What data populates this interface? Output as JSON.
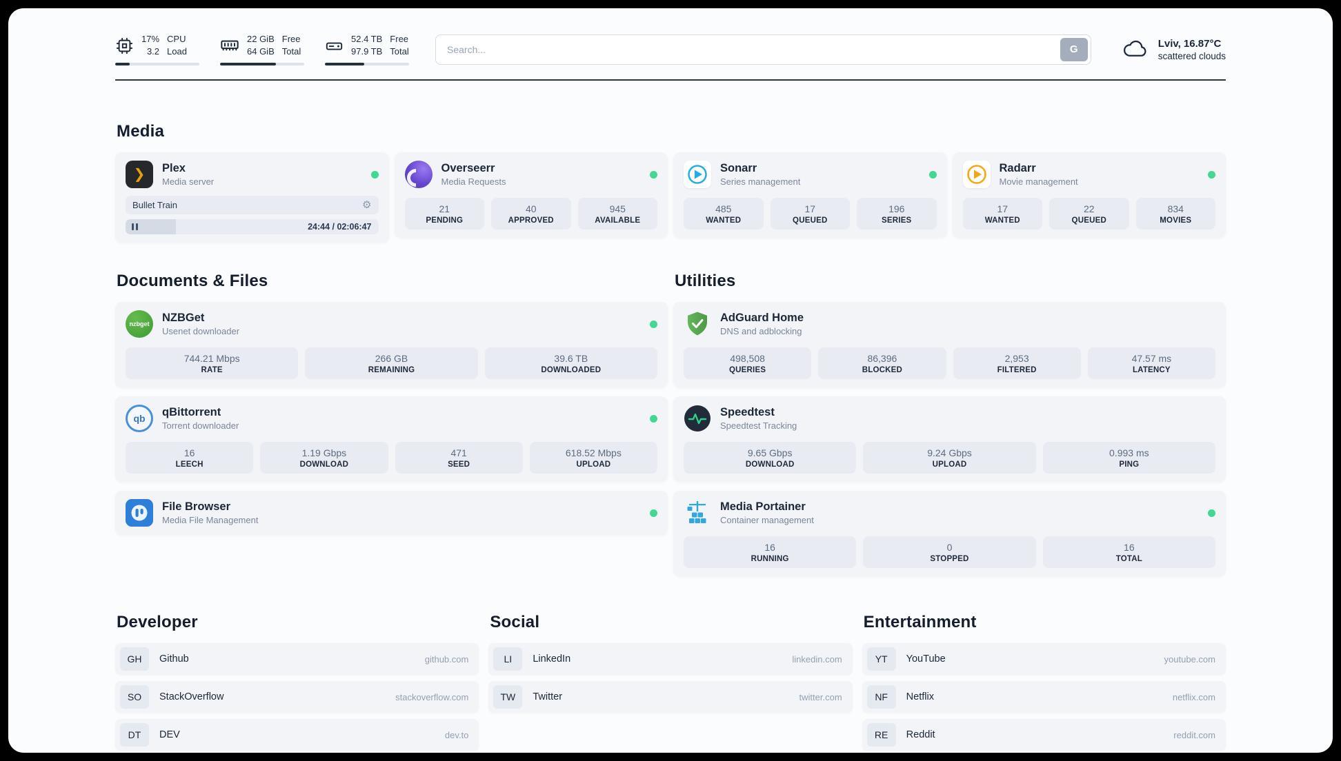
{
  "icons": {
    "plex_glyph": "❯",
    "gear_glyph": "⚙"
  },
  "colors": {
    "status_online": "#42d792",
    "progress_fill": "#232e41",
    "plex_amber": "#e5a00d"
  },
  "topbar": {
    "monitors": [
      {
        "icon": "cpu-icon",
        "value_top": "17%",
        "value_bottom": "3.2",
        "label_top": "CPU",
        "label_bottom": "Load",
        "progress": 17
      },
      {
        "icon": "memory-icon",
        "value_top": "22 GiB",
        "value_bottom": "64 GiB",
        "label_top": "Free",
        "label_bottom": "Total",
        "progress": 66
      },
      {
        "icon": "disk-icon",
        "value_top": "52.4 TB",
        "value_bottom": "97.9 TB",
        "label_top": "Free",
        "label_bottom": "Total",
        "progress": 47
      }
    ],
    "search": {
      "placeholder": "Search...",
      "button_label": "G"
    },
    "weather": {
      "location": "Lviv, 16.87°C",
      "condition": "scattered clouds"
    }
  },
  "sections": {
    "media": {
      "title": "Media",
      "plex": {
        "name": "Plex",
        "subtitle": "Media server",
        "now_playing": "Bullet Train",
        "time": "24:44 / 02:06:47",
        "progress": 20
      },
      "overseerr": {
        "name": "Overseerr",
        "subtitle": "Media Requests",
        "stats": [
          {
            "value": "21",
            "label": "PENDING"
          },
          {
            "value": "40",
            "label": "APPROVED"
          },
          {
            "value": "945",
            "label": "AVAILABLE"
          }
        ]
      },
      "sonarr": {
        "name": "Sonarr",
        "subtitle": "Series management",
        "stats": [
          {
            "value": "485",
            "label": "WANTED"
          },
          {
            "value": "17",
            "label": "QUEUED"
          },
          {
            "value": "196",
            "label": "SERIES"
          }
        ]
      },
      "radarr": {
        "name": "Radarr",
        "subtitle": "Movie management",
        "stats": [
          {
            "value": "17",
            "label": "WANTED"
          },
          {
            "value": "22",
            "label": "QUEUED"
          },
          {
            "value": "834",
            "label": "MOVIES"
          }
        ]
      }
    },
    "documents": {
      "title": "Documents & Files",
      "nzbget": {
        "name": "NZBGet",
        "subtitle": "Usenet downloader",
        "icon_text": "nzbget",
        "stats": [
          {
            "value": "744.21 Mbps",
            "label": "RATE"
          },
          {
            "value": "266 GB",
            "label": "REMAINING"
          },
          {
            "value": "39.6 TB",
            "label": "DOWNLOADED"
          }
        ]
      },
      "qbittorrent": {
        "name": "qBittorrent",
        "subtitle": "Torrent downloader",
        "icon_text": "qb",
        "stats": [
          {
            "value": "16",
            "label": "LEECH"
          },
          {
            "value": "1.19 Gbps",
            "label": "DOWNLOAD"
          },
          {
            "value": "471",
            "label": "SEED"
          },
          {
            "value": "618.52 Mbps",
            "label": "UPLOAD"
          }
        ]
      },
      "filebrowser": {
        "name": "File Browser",
        "subtitle": "Media File Management"
      }
    },
    "utilities": {
      "title": "Utilities",
      "adguard": {
        "name": "AdGuard Home",
        "subtitle": "DNS and adblocking",
        "stats": [
          {
            "value": "498,508",
            "label": "QUERIES"
          },
          {
            "value": "86,396",
            "label": "BLOCKED"
          },
          {
            "value": "2,953",
            "label": "FILTERED"
          },
          {
            "value": "47.57 ms",
            "label": "LATENCY"
          }
        ]
      },
      "speedtest": {
        "name": "Speedtest",
        "subtitle": "Speedtest Tracking",
        "stats": [
          {
            "value": "9.65 Gbps",
            "label": "DOWNLOAD"
          },
          {
            "value": "9.24 Gbps",
            "label": "UPLOAD"
          },
          {
            "value": "0.993 ms",
            "label": "PING"
          }
        ]
      },
      "portainer": {
        "name": "Media Portainer",
        "subtitle": "Container management",
        "stats": [
          {
            "value": "16",
            "label": "RUNNING"
          },
          {
            "value": "0",
            "label": "STOPPED"
          },
          {
            "value": "16",
            "label": "TOTAL"
          }
        ]
      }
    }
  },
  "bookmarks": [
    {
      "title": "Developer",
      "items": [
        {
          "abbr": "GH",
          "name": "Github",
          "domain": "github.com"
        },
        {
          "abbr": "SO",
          "name": "StackOverflow",
          "domain": "stackoverflow.com"
        },
        {
          "abbr": "DT",
          "name": "DEV",
          "domain": "dev.to"
        }
      ]
    },
    {
      "title": "Social",
      "items": [
        {
          "abbr": "LI",
          "name": "LinkedIn",
          "domain": "linkedin.com"
        },
        {
          "abbr": "TW",
          "name": "Twitter",
          "domain": "twitter.com"
        }
      ]
    },
    {
      "title": "Entertainment",
      "items": [
        {
          "abbr": "YT",
          "name": "YouTube",
          "domain": "youtube.com"
        },
        {
          "abbr": "NF",
          "name": "Netflix",
          "domain": "netflix.com"
        },
        {
          "abbr": "RE",
          "name": "Reddit",
          "domain": "reddit.com"
        }
      ]
    }
  ]
}
